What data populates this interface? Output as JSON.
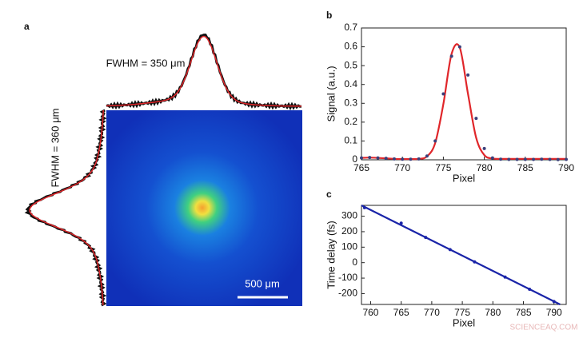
{
  "chart_data": [
    {
      "type": "image",
      "panel": "a",
      "annotations": [
        "FWHM = 350 μm",
        "FWHM = 360 μm"
      ],
      "scale_bar": "500 μm"
    },
    {
      "type": "line",
      "panel": "b",
      "xlabel": "Pixel",
      "ylabel": "Signal (a.u.)",
      "xlim": [
        765,
        790
      ],
      "xticks": [
        765,
        770,
        775,
        780,
        785,
        790
      ],
      "ylim": [
        0,
        0.7
      ],
      "yticks": [
        0,
        0.1,
        0.2,
        0.3,
        0.4,
        0.5,
        0.6,
        0.7
      ],
      "series": [
        {
          "color": "#e0262a",
          "mode": "line",
          "x": [
            765,
            766,
            767,
            768,
            769,
            770,
            771,
            772,
            773,
            774,
            775,
            776,
            777,
            778,
            779,
            780,
            781,
            782,
            783,
            784,
            785,
            786,
            787,
            788,
            789,
            790
          ],
          "values": [
            0.01,
            0.012,
            0.01,
            0.008,
            0.005,
            0.004,
            0.004,
            0.005,
            0.018,
            0.089,
            0.296,
            0.562,
            0.596,
            0.352,
            0.118,
            0.025,
            0.007,
            0.005,
            0.005,
            0.005,
            0.005,
            0.005,
            0.005,
            0.005,
            0.005,
            0.005
          ]
        },
        {
          "color": "#3a3f7a",
          "mode": "markers",
          "x": [
            765,
            766,
            767,
            768,
            769,
            770,
            771,
            772,
            773,
            774,
            775,
            776,
            777,
            778,
            779,
            780,
            781,
            782,
            783,
            784,
            785,
            786,
            787,
            788,
            789,
            790
          ],
          "values": [
            0.01,
            0.012,
            0.01,
            0.008,
            0.005,
            0.003,
            0.003,
            0.005,
            0.02,
            0.1,
            0.35,
            0.55,
            0.6,
            0.45,
            0.22,
            0.06,
            0.01,
            0.003,
            0.002,
            0.002,
            0.002,
            0.002,
            0.003,
            0.002,
            0.001,
            0.002
          ]
        }
      ]
    },
    {
      "type": "line",
      "panel": "c",
      "xlabel": "Pixel",
      "ylabel": "Time delay (fs)",
      "xlim": [
        758.5,
        792
      ],
      "xticks": [
        760,
        765,
        770,
        775,
        780,
        785,
        790
      ],
      "ylim": [
        -270,
        370
      ],
      "yticks": [
        -200,
        -100,
        0,
        100,
        200,
        300
      ],
      "series": [
        {
          "color": "#1a24a8",
          "mode": "line",
          "x": [
            758.5,
            791
          ],
          "values": [
            370,
            -270
          ]
        },
        {
          "color": "#1a24a8",
          "mode": "markers",
          "x": [
            759,
            765,
            769,
            773,
            777,
            782,
            786,
            790
          ],
          "values": [
            355,
            255,
            163,
            84,
            5,
            -93,
            -172,
            -251
          ]
        }
      ]
    },
    {
      "type": "text",
      "watermark": "SCIENCEAQ.COM"
    }
  ]
}
